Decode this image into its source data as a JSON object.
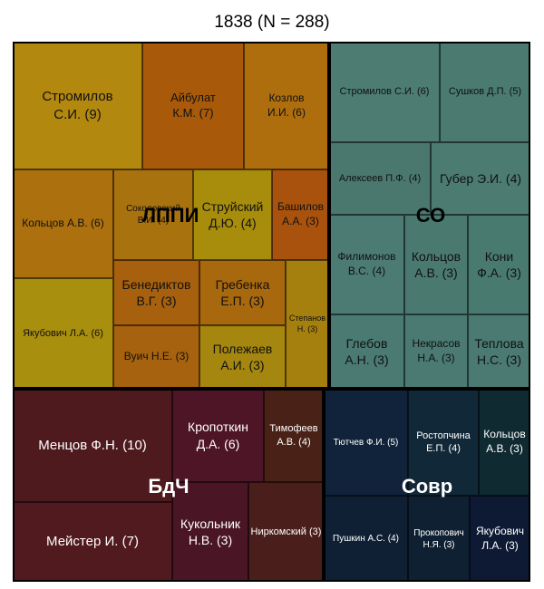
{
  "chart_data": {
    "type": "treemap",
    "title": "1838 (N = 288)",
    "groups": [
      {
        "name": "ЛППИ",
        "color": "#b0840e",
        "label_color": "#000000",
        "leaves": [
          {
            "label": "Стромилов С.И. (9)",
            "value": 9,
            "color": "#b3880f"
          },
          {
            "label": "Айбулат К.М. (7)",
            "value": 7,
            "color": "#a85a0a"
          },
          {
            "label": "Козлов И.И. (6)",
            "value": 6,
            "color": "#ae6e0e"
          },
          {
            "label": "Кольцов А.В. (6)",
            "value": 6,
            "color": "#ac710e"
          },
          {
            "label": "Соколовский В.И. (4)",
            "value": 4,
            "color": "#a8720e"
          },
          {
            "label": "Струйский Д.Ю. (4)",
            "value": 4,
            "color": "#a88d0d"
          },
          {
            "label": "Башилов А.А. (3)",
            "value": 3,
            "color": "#a8520d"
          },
          {
            "label": "Якубович Л.А. (6)",
            "value": 6,
            "color": "#a98f0e"
          },
          {
            "label": "Бенедиктов В.Г. (3)",
            "value": 3,
            "color": "#a6600e"
          },
          {
            "label": "Гребенка Е.П. (3)",
            "value": 3,
            "color": "#a7680e"
          },
          {
            "label": "Вуич Н.Е. (3)",
            "value": 3,
            "color": "#a6620e"
          },
          {
            "label": "Полежаев А.И. (3)",
            "value": 3,
            "color": "#a5860e"
          },
          {
            "label": "Степанов Н. (3)",
            "value": 3,
            "color": "#a6800e"
          }
        ]
      },
      {
        "name": "СО",
        "color": "#4b7b72",
        "label_color": "#000000",
        "leaves": [
          {
            "label": "Стромилов С.И. (6)",
            "value": 6,
            "color": "#4c7c72"
          },
          {
            "label": "Сушков Д.П. (5)",
            "value": 5,
            "color": "#4a7a70"
          },
          {
            "label": "Алексеев П.Ф. (4)",
            "value": 4,
            "color": "#4a786f"
          },
          {
            "label": "Губер Э.И. (4)",
            "value": 4,
            "color": "#4c7b72"
          },
          {
            "label": "Филимонов В.С. (4)",
            "value": 4,
            "color": "#4b7b73"
          },
          {
            "label": "Кольцов А.В. (3)",
            "value": 3,
            "color": "#4a7970"
          },
          {
            "label": "Кони Ф.А. (3)",
            "value": 3,
            "color": "#497a70"
          },
          {
            "label": "Глебов А.Н. (3)",
            "value": 3,
            "color": "#4a7a71"
          },
          {
            "label": "Некрасов Н.А. (3)",
            "value": 3,
            "color": "#4a7a71"
          },
          {
            "label": "Теплова Н.С. (3)",
            "value": 3,
            "color": "#4a7a71"
          }
        ]
      },
      {
        "name": "БдЧ",
        "color": "#4f1a1d",
        "label_color": "#ffffff",
        "leaves": [
          {
            "label": "Менцов Ф.Н. (10)",
            "value": 10,
            "color": "#4f1a1e"
          },
          {
            "label": "Кропоткин Д.А. (6)",
            "value": 6,
            "color": "#4e1526"
          },
          {
            "label": "Тимофеев А.В. (4)",
            "value": 4,
            "color": "#4a2117"
          },
          {
            "label": "Мейстер И. (7)",
            "value": 7,
            "color": "#501a1e"
          },
          {
            "label": "Кукольник Н.В. (3)",
            "value": 3,
            "color": "#4a1524"
          },
          {
            "label": "Ниркомский (3)",
            "value": 3,
            "color": "#4a1e1b"
          }
        ]
      },
      {
        "name": "Совр",
        "color": "#0f2236",
        "label_color": "#ffffff",
        "leaves": [
          {
            "label": "Тютчев Ф.И. (5)",
            "value": 5,
            "color": "#10233a"
          },
          {
            "label": "Ростопчина Е.П. (4)",
            "value": 4,
            "color": "#112838"
          },
          {
            "label": "Кольцов А.В. (3)",
            "value": 3,
            "color": "#102a31"
          },
          {
            "label": "Пушкин А.С. (4)",
            "value": 4,
            "color": "#0f2034"
          },
          {
            "label": "Прокопович Н.Я. (3)",
            "value": 3,
            "color": "#0f2032"
          },
          {
            "label": "Якубович Л.А. (3)",
            "value": 3,
            "color": "#0e1a34"
          }
        ]
      }
    ]
  }
}
